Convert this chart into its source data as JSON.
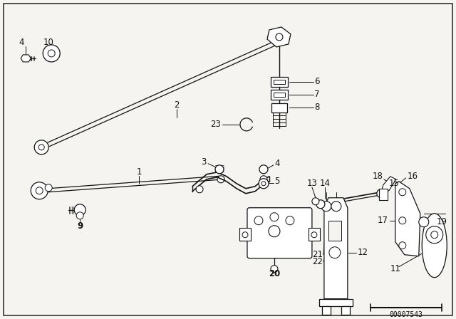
{
  "bg_color": "#f5f4f0",
  "border_color": "#333333",
  "part_number": "00007543",
  "line_color": "#111111",
  "line_width": 0.9,
  "fig_w": 6.4,
  "fig_h": 4.48,
  "dpi": 100,
  "xlim": [
    0,
    640
  ],
  "ylim": [
    0,
    448
  ],
  "label_fs": 8.5,
  "label_bold": true
}
